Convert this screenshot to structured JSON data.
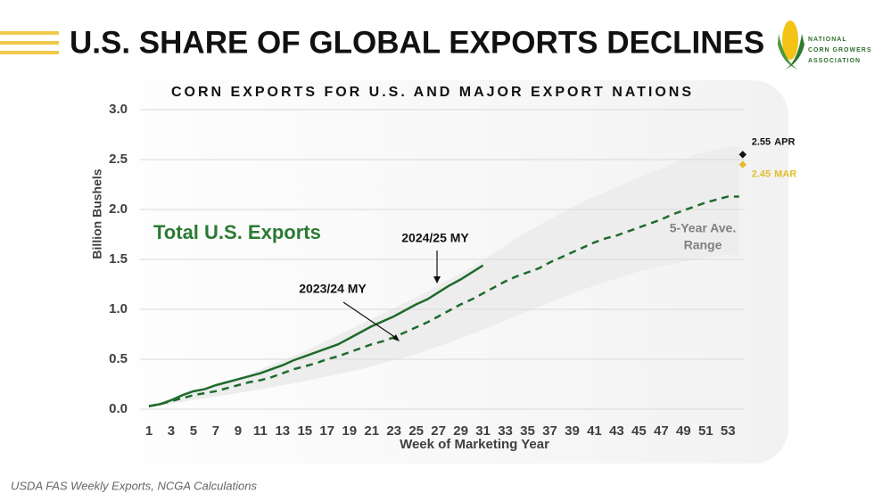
{
  "header": {
    "title": "U.S. SHARE OF GLOBAL EXPORTS DECLINES",
    "logo_lines": [
      "NATIONAL",
      "CORN GROWERS",
      "ASSOCIATION"
    ]
  },
  "source": "USDA FAS Weekly Exports, NCGA Calculations",
  "chart_data": {
    "type": "line",
    "title": "CORN EXPORTS FOR U.S. AND MAJOR EXPORT NATIONS",
    "x_label": "Week of Marketing Year",
    "y_label": "Billion Bushels",
    "xlim": [
      0.2,
      54.5
    ],
    "ylim": [
      0,
      3
    ],
    "xticks": [
      1,
      3,
      5,
      7,
      9,
      11,
      13,
      15,
      17,
      19,
      21,
      23,
      25,
      27,
      29,
      31,
      33,
      35,
      37,
      39,
      41,
      43,
      45,
      47,
      49,
      51,
      53
    ],
    "yticks": [
      {
        "value": 0,
        "label": "0.0"
      },
      0.5,
      {
        "value": 1,
        "label": "1.0"
      },
      1.5,
      {
        "value": 2,
        "label": "2.0"
      },
      2.5,
      {
        "value": 3,
        "label": "3.0"
      }
    ],
    "grid": true,
    "annotation": "Total U.S. Exports",
    "range": {
      "label_lines": [
        "5-Year Ave.",
        "Range"
      ],
      "color": "#ededed",
      "x": [
        1,
        5,
        10,
        15,
        20,
        25,
        30,
        35,
        40,
        45,
        50,
        53,
        54
      ],
      "high": [
        0.04,
        0.17,
        0.35,
        0.58,
        0.85,
        1.12,
        1.42,
        1.78,
        2.08,
        2.32,
        2.55,
        2.63,
        2.62
      ],
      "low": [
        0.02,
        0.09,
        0.18,
        0.28,
        0.4,
        0.55,
        0.75,
        0.98,
        1.2,
        1.38,
        1.5,
        1.55,
        1.53
      ]
    },
    "series": [
      {
        "name": "2024/25 MY",
        "color": "#1f6b2d",
        "dashed": false,
        "x": [
          1,
          2,
          3,
          4,
          5,
          6,
          7,
          8,
          9,
          10,
          11,
          12,
          13,
          14,
          15,
          16,
          17,
          18,
          19,
          20,
          21,
          22,
          23,
          24,
          25,
          26,
          27,
          28,
          29,
          30,
          31
        ],
        "values": [
          0.03,
          0.05,
          0.09,
          0.14,
          0.18,
          0.2,
          0.24,
          0.27,
          0.3,
          0.33,
          0.36,
          0.4,
          0.44,
          0.49,
          0.53,
          0.57,
          0.61,
          0.65,
          0.71,
          0.77,
          0.83,
          0.88,
          0.93,
          0.99,
          1.05,
          1.1,
          1.17,
          1.24,
          1.3,
          1.37,
          1.44
        ]
      },
      {
        "name": "2023/24 MY",
        "color": "#1f6b2d",
        "dashed": true,
        "x": [
          1,
          2,
          3,
          4,
          5,
          6,
          7,
          8,
          9,
          10,
          11,
          12,
          13,
          14,
          15,
          16,
          17,
          18,
          19,
          20,
          21,
          22,
          23,
          24,
          25,
          26,
          27,
          28,
          29,
          30,
          31,
          32,
          33,
          34,
          35,
          36,
          37,
          38,
          39,
          40,
          41,
          42,
          43,
          44,
          45,
          46,
          47,
          48,
          49,
          50,
          51,
          52,
          53,
          54
        ],
        "values": [
          0.03,
          0.05,
          0.08,
          0.11,
          0.14,
          0.16,
          0.18,
          0.21,
          0.24,
          0.27,
          0.29,
          0.32,
          0.36,
          0.4,
          0.43,
          0.46,
          0.5,
          0.53,
          0.57,
          0.61,
          0.65,
          0.68,
          0.72,
          0.77,
          0.82,
          0.87,
          0.93,
          0.99,
          1.05,
          1.1,
          1.16,
          1.22,
          1.28,
          1.33,
          1.37,
          1.41,
          1.47,
          1.52,
          1.57,
          1.62,
          1.67,
          1.71,
          1.74,
          1.78,
          1.82,
          1.86,
          1.9,
          1.95,
          1.99,
          2.03,
          2.07,
          2.1,
          2.13,
          2.13
        ]
      }
    ],
    "points": [
      {
        "name": "APR",
        "x": 54,
        "value": 2.55,
        "color": "#111111"
      },
      {
        "name": "MAR",
        "x": 54,
        "value": 2.45,
        "color": "#e3be2c"
      }
    ]
  }
}
